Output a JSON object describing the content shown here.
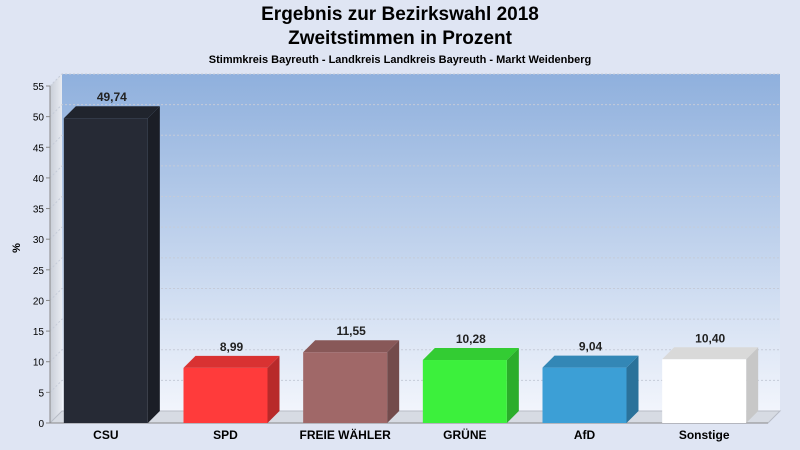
{
  "chart_data": {
    "type": "bar",
    "title": "Ergebnis zur Bezirkswahl 2018",
    "subtitle": "Zweitstimmen in Prozent",
    "subsubtitle": "Stimmkreis Bayreuth - Landkreis Landkreis Bayreuth - Markt Weidenberg",
    "ylabel": "%",
    "ylim": [
      0,
      55
    ],
    "yticks": [
      0,
      5,
      10,
      15,
      20,
      25,
      30,
      35,
      40,
      45,
      50,
      55
    ],
    "categories": [
      "CSU",
      "SPD",
      "FREIE WÄHLER",
      "GRÜNE",
      "AfD",
      "Sonstige"
    ],
    "values": [
      49.74,
      8.99,
      11.55,
      10.28,
      9.04,
      10.4
    ],
    "value_labels": [
      "49,74",
      "8,99",
      "11,55",
      "10,28",
      "9,04",
      "10,40"
    ],
    "colors": [
      "#262a35",
      "#ff3b3b",
      "#a06868",
      "#3cf03c",
      "#3c9fd6",
      "#ffffff"
    ],
    "grid": true
  }
}
